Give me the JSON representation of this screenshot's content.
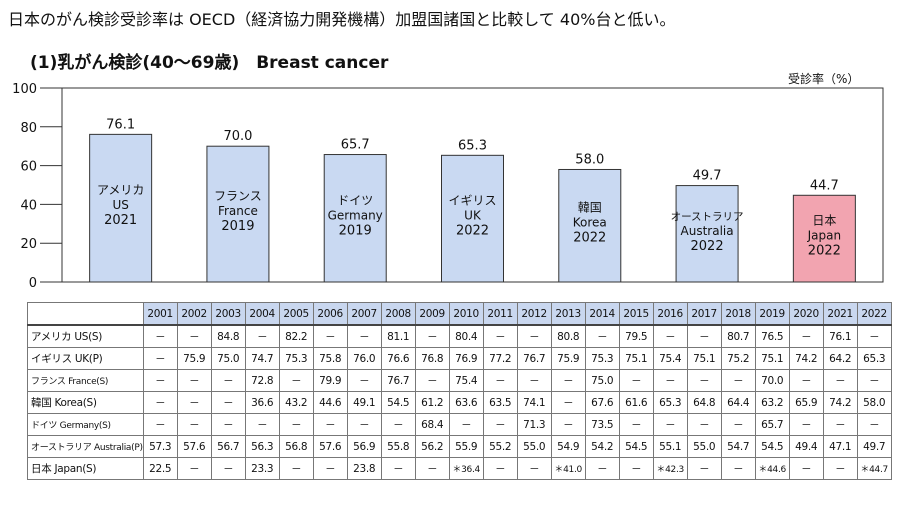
{
  "headline": "日本のがん検診受診率は OECD（経済協力開発機構）加盟国諸国と比較して 40%台と低い。",
  "chart_data": {
    "type": "bar",
    "title": "(1)乳がん検診(40〜69歳)　Breast cancer",
    "ylabel": "受診率（%）",
    "ylim": [
      0,
      100
    ],
    "yticks": [
      0,
      20,
      40,
      60,
      80,
      100
    ],
    "bars": [
      {
        "name_ja": "アメリカ",
        "name_en": "US",
        "year": "2021",
        "value": 76.1,
        "value_label": "76.1",
        "color": "#c9d9f2"
      },
      {
        "name_ja": "フランス",
        "name_en": "France",
        "year": "2019",
        "value": 70.0,
        "value_label": "70.0",
        "color": "#c9d9f2"
      },
      {
        "name_ja": "ドイツ",
        "name_en": "Germany",
        "year": "2019",
        "value": 65.7,
        "value_label": "65.7",
        "color": "#c9d9f2"
      },
      {
        "name_ja": "イギリス",
        "name_en": "UK",
        "year": "2022",
        "value": 65.3,
        "value_label": "65.3",
        "color": "#c9d9f2"
      },
      {
        "name_ja": "韓国",
        "name_en": "Korea",
        "year": "2022",
        "value": 58.0,
        "value_label": "58.0",
        "color": "#c9d9f2"
      },
      {
        "name_ja": "オーストラリア",
        "name_en": "Australia",
        "year": "2022",
        "value": 49.7,
        "value_label": "49.7",
        "color": "#c9d9f2"
      },
      {
        "name_ja": "日本",
        "name_en": "Japan",
        "year": "2022",
        "value": 44.7,
        "value_label": "44.7",
        "color": "#f2a4b0"
      }
    ]
  },
  "table": {
    "years": [
      "2001",
      "2002",
      "2003",
      "2004",
      "2005",
      "2006",
      "2007",
      "2008",
      "2009",
      "2010",
      "2011",
      "2012",
      "2013",
      "2014",
      "2015",
      "2016",
      "2017",
      "2018",
      "2019",
      "2020",
      "2021",
      "2022"
    ],
    "rows": [
      {
        "label": "アメリカ US(S)",
        "small": false,
        "cells": [
          "－",
          "－",
          "84.8",
          "－",
          "82.2",
          "－",
          "－",
          "81.1",
          "－",
          "80.4",
          "－",
          "－",
          "80.8",
          "－",
          "79.5",
          "－",
          "－",
          "80.7",
          "76.5",
          "－",
          "76.1",
          "－"
        ]
      },
      {
        "label": "イギリス UK(P)",
        "small": false,
        "cells": [
          "－",
          "75.9",
          "75.0",
          "74.7",
          "75.3",
          "75.8",
          "76.0",
          "76.6",
          "76.8",
          "76.9",
          "77.2",
          "76.7",
          "75.9",
          "75.3",
          "75.1",
          "75.4",
          "75.1",
          "75.2",
          "75.1",
          "74.2",
          "64.2",
          "65.3"
        ]
      },
      {
        "label": "フランス France(S)",
        "small": true,
        "cells": [
          "－",
          "－",
          "－",
          "72.8",
          "－",
          "79.9",
          "－",
          "76.7",
          "－",
          "75.4",
          "－",
          "－",
          "－",
          "75.0",
          "－",
          "－",
          "－",
          "－",
          "70.0",
          "－",
          "－",
          "－"
        ]
      },
      {
        "label": "韓国 Korea(S)",
        "small": false,
        "cells": [
          "－",
          "－",
          "－",
          "36.6",
          "43.2",
          "44.6",
          "49.1",
          "54.5",
          "61.2",
          "63.6",
          "63.5",
          "74.1",
          "－",
          "67.6",
          "61.6",
          "65.3",
          "64.8",
          "64.4",
          "63.2",
          "65.9",
          "74.2",
          "58.0"
        ]
      },
      {
        "label": "ドイツ Germany(S)",
        "small": true,
        "cells": [
          "－",
          "－",
          "－",
          "－",
          "－",
          "－",
          "－",
          "－",
          "68.4",
          "－",
          "－",
          "71.3",
          "－",
          "73.5",
          "－",
          "－",
          "－",
          "－",
          "65.7",
          "－",
          "－",
          "－"
        ]
      },
      {
        "label": "オーストラリア Australia(P)",
        "small": true,
        "cells": [
          "57.3",
          "57.6",
          "56.7",
          "56.3",
          "56.8",
          "57.6",
          "56.9",
          "55.8",
          "56.2",
          "55.9",
          "55.2",
          "55.0",
          "54.9",
          "54.2",
          "54.5",
          "55.1",
          "55.0",
          "54.7",
          "54.5",
          "49.4",
          "47.1",
          "49.7"
        ]
      },
      {
        "label": "日本 Japan(S)",
        "small": false,
        "cells": [
          "22.5",
          "－",
          "－",
          "23.3",
          "－",
          "－",
          "23.8",
          "－",
          "－",
          "＊36.4",
          "－",
          "－",
          "＊41.0",
          "－",
          "－",
          "＊42.3",
          "－",
          "－",
          "＊44.6",
          "－",
          "－",
          "＊44.7"
        ]
      }
    ]
  }
}
